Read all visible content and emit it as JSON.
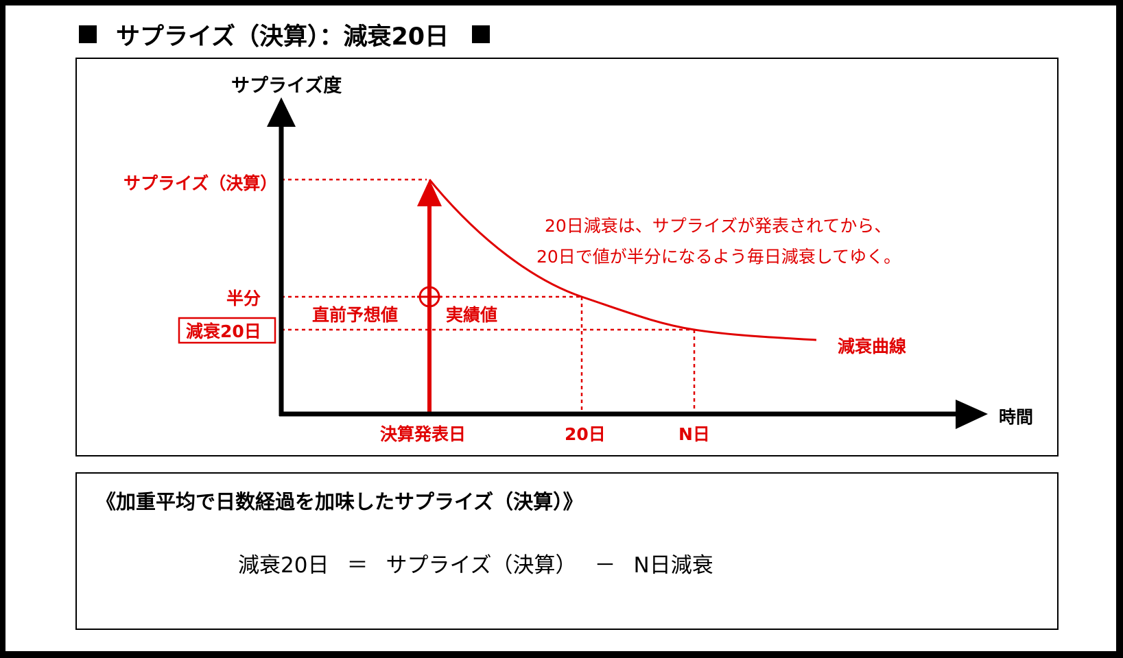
{
  "title": {
    "text": "サプライズ（決算）：減衰20日"
  },
  "diagram": {
    "y_axis_label": "サプライズ度",
    "x_axis_label": "時間",
    "label_peak": "サプライズ（決算）",
    "label_half": "半分",
    "label_decay20": "減衰20日",
    "label_before": "直前予想値",
    "label_actual": "実績値",
    "x_tick_announce": "決算発表日",
    "x_tick_20": "20日",
    "x_tick_n": "N日",
    "curve_label": "減衰曲線",
    "annotation_line1": "20日減衰は、サプライズが発表されてから、",
    "annotation_line2": "20日で値が半分になるよう毎日減衰してゆく。",
    "colors": {
      "accent": "#e00000",
      "axis": "#000000"
    }
  },
  "formula": {
    "heading": "《加重平均で日数経過を加味したサプライズ（決算）》",
    "lhs": "減衰20日",
    "equals": "＝",
    "term1": "サプライズ（決算）",
    "minus": "－",
    "term2": "N日減衰"
  }
}
